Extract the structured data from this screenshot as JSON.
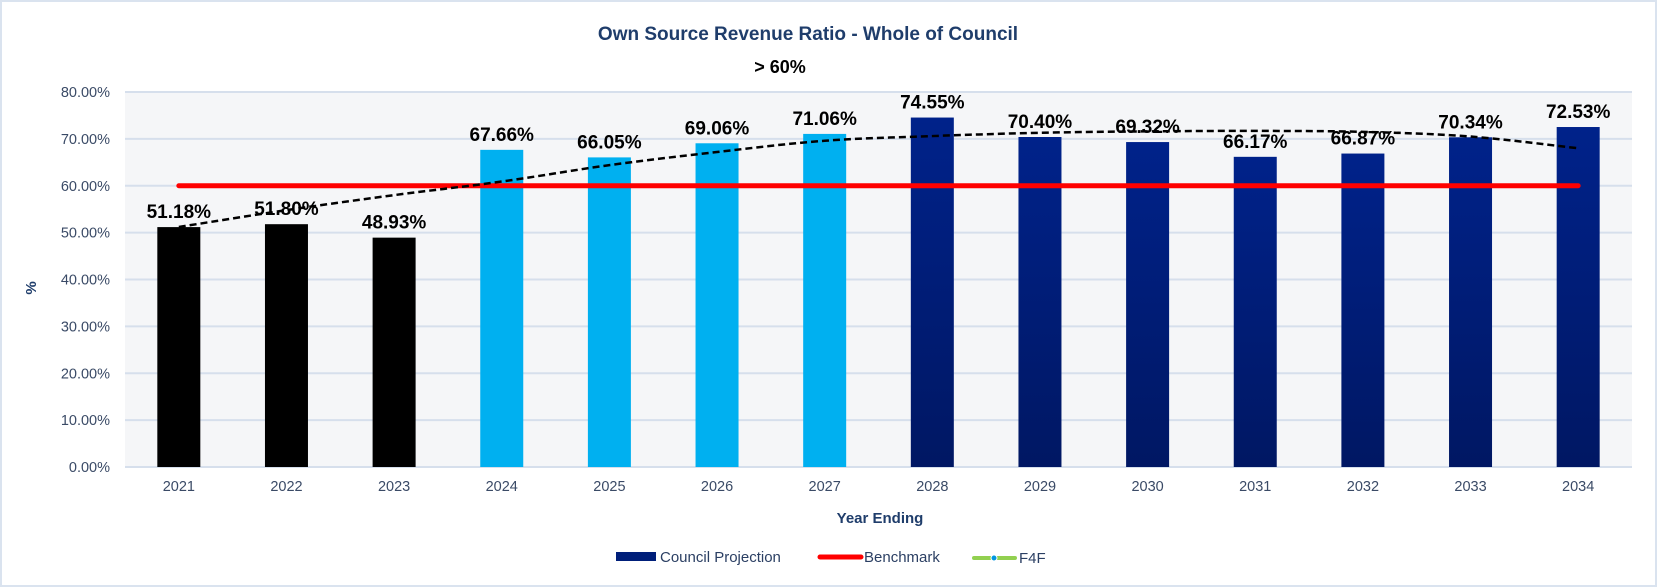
{
  "chart_data": {
    "type": "bar",
    "title": "Own Source Revenue Ratio - Whole of Council",
    "subtitle": "> 60%",
    "xlabel": "Year Ending",
    "ylabel": "%",
    "ylim": [
      0,
      80
    ],
    "ytick_step": 10,
    "ytick_labels": [
      "0.00%",
      "10.00%",
      "20.00%",
      "30.00%",
      "40.00%",
      "50.00%",
      "60.00%",
      "70.00%",
      "80.00%"
    ],
    "grid": true,
    "legend_position": "bottom",
    "categories": [
      "2021",
      "2022",
      "2023",
      "2024",
      "2025",
      "2026",
      "2027",
      "2028",
      "2029",
      "2030",
      "2031",
      "2032",
      "2033",
      "2034"
    ],
    "series": [
      {
        "name": "Council Projection",
        "kind": "bar",
        "values": [
          51.18,
          51.8,
          48.93,
          67.66,
          66.05,
          69.06,
          71.06,
          74.55,
          70.4,
          69.32,
          66.17,
          66.87,
          70.34,
          72.53
        ],
        "data_labels": [
          "51.18%",
          "51.80%",
          "48.93%",
          "67.66%",
          "66.05%",
          "69.06%",
          "71.06%",
          "74.55%",
          "70.40%",
          "69.32%",
          "66.17%",
          "66.87%",
          "70.34%",
          "72.53%"
        ],
        "bar_colors": [
          "#000000",
          "#000000",
          "#000000",
          "#00b0f0",
          "#00b0f0",
          "#00b0f0",
          "#00b0f0",
          "#001f7a",
          "#001f7a",
          "#001f7a",
          "#001f7a",
          "#001f7a",
          "#001f7a",
          "#001f7a"
        ]
      },
      {
        "name": "Benchmark",
        "kind": "line",
        "color": "#ff0000",
        "values": [
          60,
          60,
          60,
          60,
          60,
          60,
          60,
          60,
          60,
          60,
          60,
          60,
          60,
          60
        ]
      },
      {
        "name": "F4F",
        "kind": "line",
        "color": "#92d050",
        "marker_color": "#0096e0",
        "values": []
      },
      {
        "name": "Trendline",
        "kind": "dashed-line",
        "color": "#000000",
        "values": [
          51.2,
          54.8,
          58.0,
          60.9,
          64.4,
          67.2,
          69.6,
          70.6,
          71.3,
          71.6,
          71.7,
          71.5,
          70.5,
          68.0
        ]
      }
    ]
  },
  "legend": {
    "items": [
      {
        "label": "Council Projection",
        "swatch": "bar",
        "color": "#001f7a"
      },
      {
        "label": "Benchmark",
        "swatch": "line",
        "color": "#ff0000"
      },
      {
        "label": "F4F",
        "swatch": "line-marker",
        "color": "#92d050",
        "marker_color": "#0096e0"
      }
    ]
  },
  "colors": {
    "title": "#1f3d6b",
    "axis_text": "#3a4a66",
    "grid": "#d6dfec",
    "plot_bg": "#f5f6f8",
    "frame": "#dae3ef"
  }
}
